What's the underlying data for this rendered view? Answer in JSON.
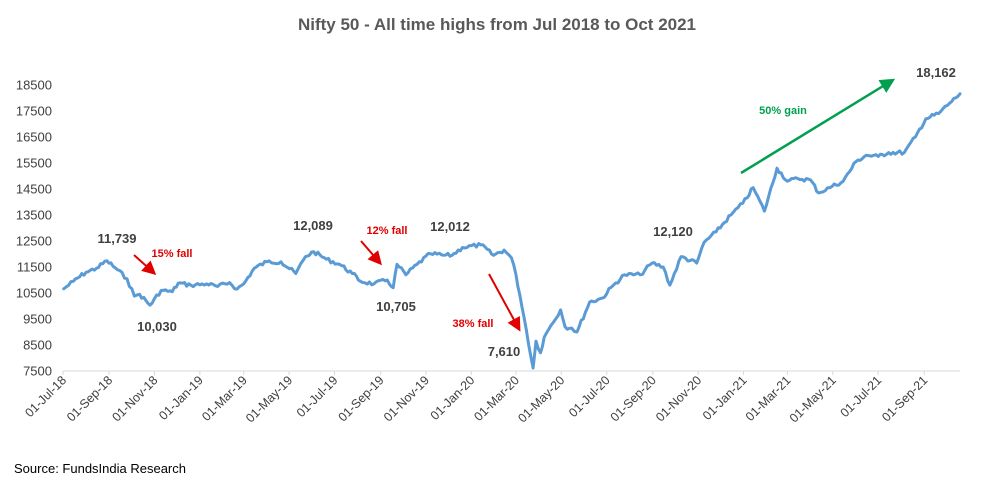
{
  "source_text": "Source: FundsIndia Research",
  "chart_data": {
    "type": "line",
    "title": "Nifty 50 - All time highs from Jul 2018 to Oct 2021",
    "xlabel": "",
    "ylabel": "",
    "ylim": [
      7500,
      18500
    ],
    "yticks": [
      7500,
      8500,
      9500,
      10500,
      11500,
      12500,
      13500,
      14500,
      15500,
      16500,
      17500,
      18500
    ],
    "ytick_labels": [
      "7500",
      "8500",
      "9500",
      "10500",
      "11500",
      "12500",
      "13500",
      "14500",
      "15500",
      "16500",
      "17500",
      "18500"
    ],
    "xlim": [
      "2018-07-01",
      "2021-10-19"
    ],
    "xticks": [
      "2018-07-01",
      "2018-09-01",
      "2018-11-01",
      "2019-01-01",
      "2019-03-01",
      "2019-05-01",
      "2019-07-01",
      "2019-09-01",
      "2019-11-01",
      "2020-01-01",
      "2020-03-01",
      "2020-05-01",
      "2020-07-01",
      "2020-09-01",
      "2020-11-01",
      "2021-01-01",
      "2021-03-01",
      "2021-05-01",
      "2021-07-01",
      "2021-09-01"
    ],
    "xtick_labels": [
      "01-Jul-18",
      "01-Sep-18",
      "01-Nov-18",
      "01-Jan-19",
      "01-Mar-19",
      "01-May-19",
      "01-Jul-19",
      "01-Sep-19",
      "01-Nov-19",
      "01-Jan-20",
      "01-Mar-20",
      "01-May-20",
      "01-Jul-20",
      "01-Sep-20",
      "01-Nov-20",
      "01-Jan-21",
      "01-Mar-21",
      "01-May-21",
      "01-Jul-21",
      "01-Sep-21"
    ],
    "grid": false,
    "line_color": "#5b9bd5",
    "series": [
      {
        "points": [
          [
            "2018-07-02",
            10660
          ],
          [
            "2018-07-15",
            10950
          ],
          [
            "2018-08-01",
            11300
          ],
          [
            "2018-08-15",
            11450
          ],
          [
            "2018-08-29",
            11739
          ],
          [
            "2018-09-12",
            11400
          ],
          [
            "2018-09-25",
            11050
          ],
          [
            "2018-10-05",
            10380
          ],
          [
            "2018-10-12",
            10450
          ],
          [
            "2018-10-26",
            10030
          ],
          [
            "2018-11-10",
            10600
          ],
          [
            "2018-11-25",
            10550
          ],
          [
            "2018-12-03",
            10880
          ],
          [
            "2018-12-20",
            10800
          ],
          [
            "2019-01-10",
            10850
          ],
          [
            "2019-01-25",
            10750
          ],
          [
            "2019-02-10",
            10900
          ],
          [
            "2019-02-20",
            10650
          ],
          [
            "2019-03-01",
            10850
          ],
          [
            "2019-03-15",
            11450
          ],
          [
            "2019-04-01",
            11700
          ],
          [
            "2019-04-20",
            11700
          ],
          [
            "2019-05-10",
            11250
          ],
          [
            "2019-05-23",
            11900
          ],
          [
            "2019-06-03",
            12089
          ],
          [
            "2019-06-20",
            11800
          ],
          [
            "2019-07-08",
            11600
          ],
          [
            "2019-07-25",
            11250
          ],
          [
            "2019-08-05",
            10950
          ],
          [
            "2019-08-23",
            10850
          ],
          [
            "2019-09-10",
            11000
          ],
          [
            "2019-09-18",
            10705
          ],
          [
            "2019-09-23",
            11600
          ],
          [
            "2019-10-05",
            11200
          ],
          [
            "2019-10-20",
            11600
          ],
          [
            "2019-11-07",
            12012
          ],
          [
            "2019-11-25",
            11950
          ],
          [
            "2019-12-06",
            11950
          ],
          [
            "2019-12-20",
            12250
          ],
          [
            "2020-01-14",
            12350
          ],
          [
            "2020-01-31",
            11950
          ],
          [
            "2020-02-14",
            12150
          ],
          [
            "2020-02-24",
            11850
          ],
          [
            "2020-03-01",
            11200
          ],
          [
            "2020-03-06",
            10450
          ],
          [
            "2020-03-12",
            9550
          ],
          [
            "2020-03-24",
            7610
          ],
          [
            "2020-03-28",
            8650
          ],
          [
            "2020-04-03",
            8200
          ],
          [
            "2020-04-08",
            8800
          ],
          [
            "2020-04-17",
            9250
          ],
          [
            "2020-04-30",
            9850
          ],
          [
            "2020-05-06",
            9200
          ],
          [
            "2020-05-15",
            9150
          ],
          [
            "2020-05-22",
            9000
          ],
          [
            "2020-06-08",
            10150
          ],
          [
            "2020-06-25",
            10300
          ],
          [
            "2020-07-10",
            10800
          ],
          [
            "2020-07-25",
            11200
          ],
          [
            "2020-08-15",
            11200
          ],
          [
            "2020-08-31",
            11650
          ],
          [
            "2020-09-15",
            11500
          ],
          [
            "2020-09-24",
            10800
          ],
          [
            "2020-10-09",
            11900
          ],
          [
            "2020-10-30",
            11650
          ],
          [
            "2020-11-09",
            12450
          ],
          [
            "2020-11-25",
            12850
          ],
          [
            "2020-12-15",
            13500
          ],
          [
            "2020-12-31",
            13950
          ],
          [
            "2021-01-14",
            14550
          ],
          [
            "2021-01-29",
            13650
          ],
          [
            "2021-02-15",
            15300
          ],
          [
            "2021-03-01",
            14800
          ],
          [
            "2021-03-15",
            14900
          ],
          [
            "2021-04-01",
            14850
          ],
          [
            "2021-04-12",
            14350
          ],
          [
            "2021-04-30",
            14600
          ],
          [
            "2021-05-15",
            14800
          ],
          [
            "2021-06-01",
            15550
          ],
          [
            "2021-06-15",
            15800
          ],
          [
            "2021-07-01",
            15750
          ],
          [
            "2021-07-15",
            15900
          ],
          [
            "2021-08-05",
            15900
          ],
          [
            "2021-08-20",
            16500
          ],
          [
            "2021-09-03",
            17200
          ],
          [
            "2021-09-20",
            17400
          ],
          [
            "2021-10-05",
            17800
          ],
          [
            "2021-10-19",
            18162
          ]
        ]
      }
    ],
    "annotations": {
      "values": [
        {
          "text": "11,739"
        },
        {
          "text": "10,030"
        },
        {
          "text": "12,089"
        },
        {
          "text": "10,705"
        },
        {
          "text": "12,012"
        },
        {
          "text": "7,610"
        },
        {
          "text": "12,120"
        },
        {
          "text": "18,162"
        }
      ],
      "labels": [
        {
          "text": "15% fall",
          "color": "#e00000"
        },
        {
          "text": "12% fall",
          "color": "#e00000"
        },
        {
          "text": "38% fall",
          "color": "#e00000"
        },
        {
          "text": "50% gain",
          "color": "#00a050"
        }
      ]
    }
  }
}
